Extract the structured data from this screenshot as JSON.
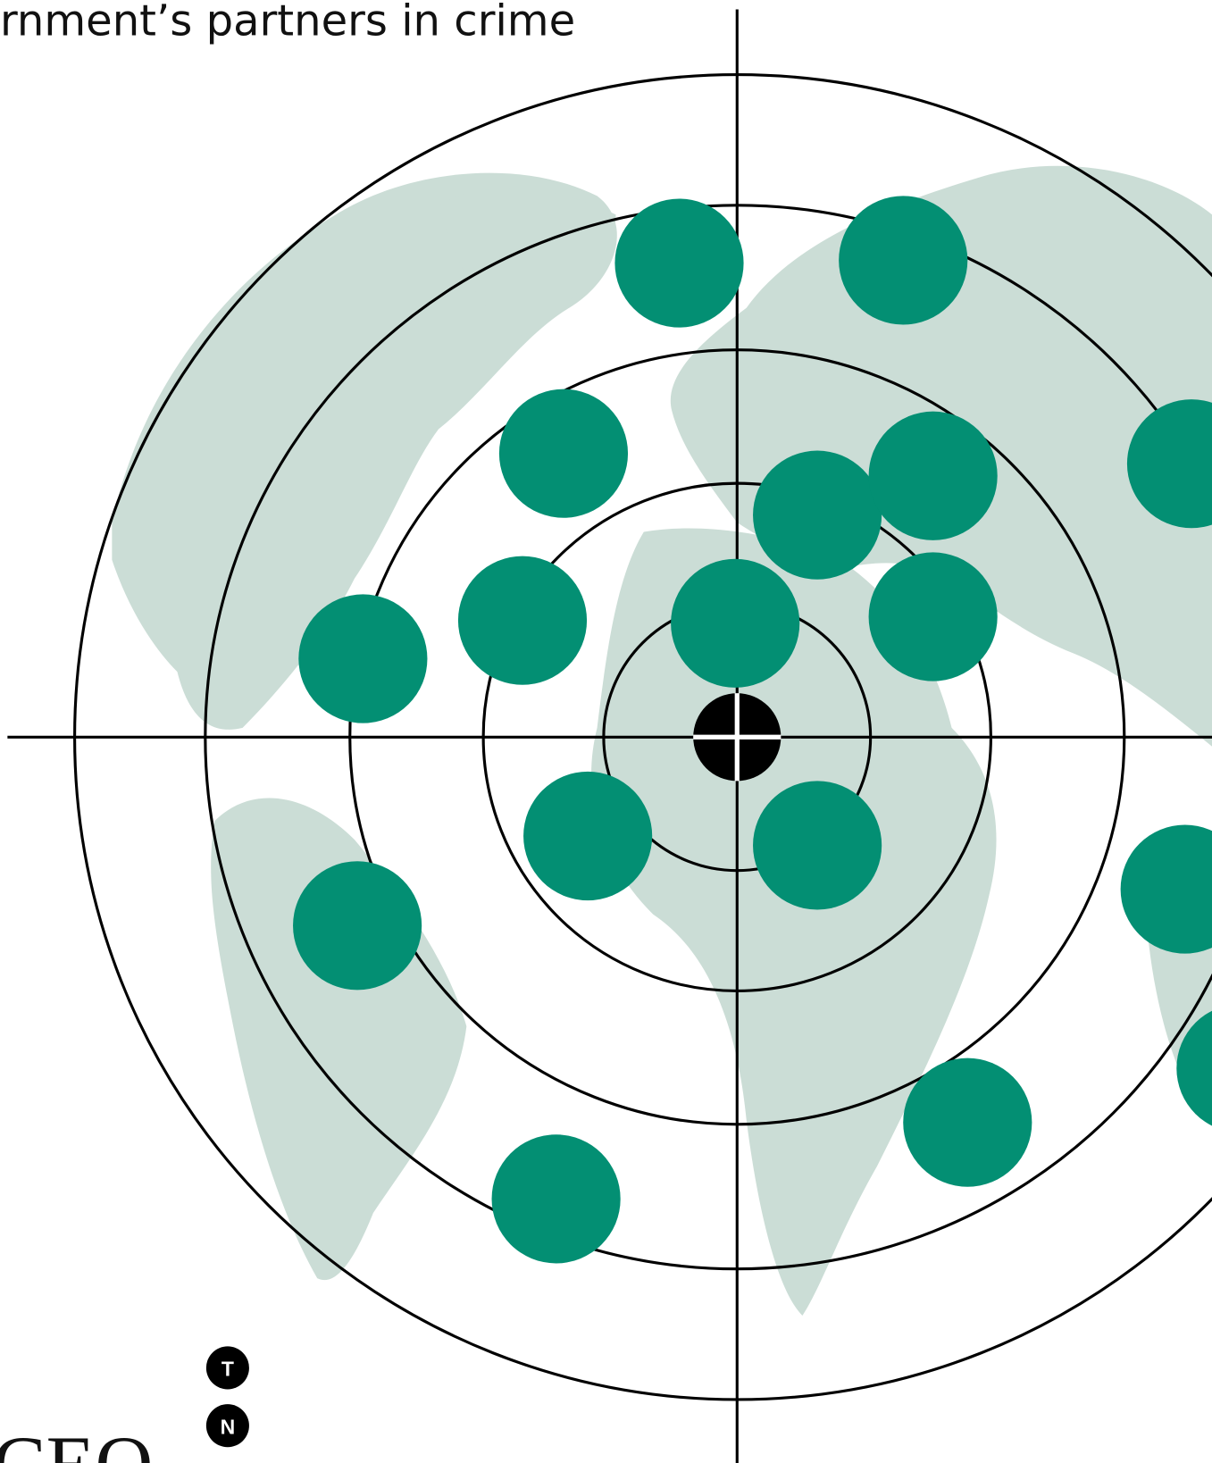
{
  "header": {
    "title": "rnment’s partners in crime"
  },
  "footer": {
    "logo": "CEO",
    "badges": [
      "T",
      "N"
    ]
  }
}
